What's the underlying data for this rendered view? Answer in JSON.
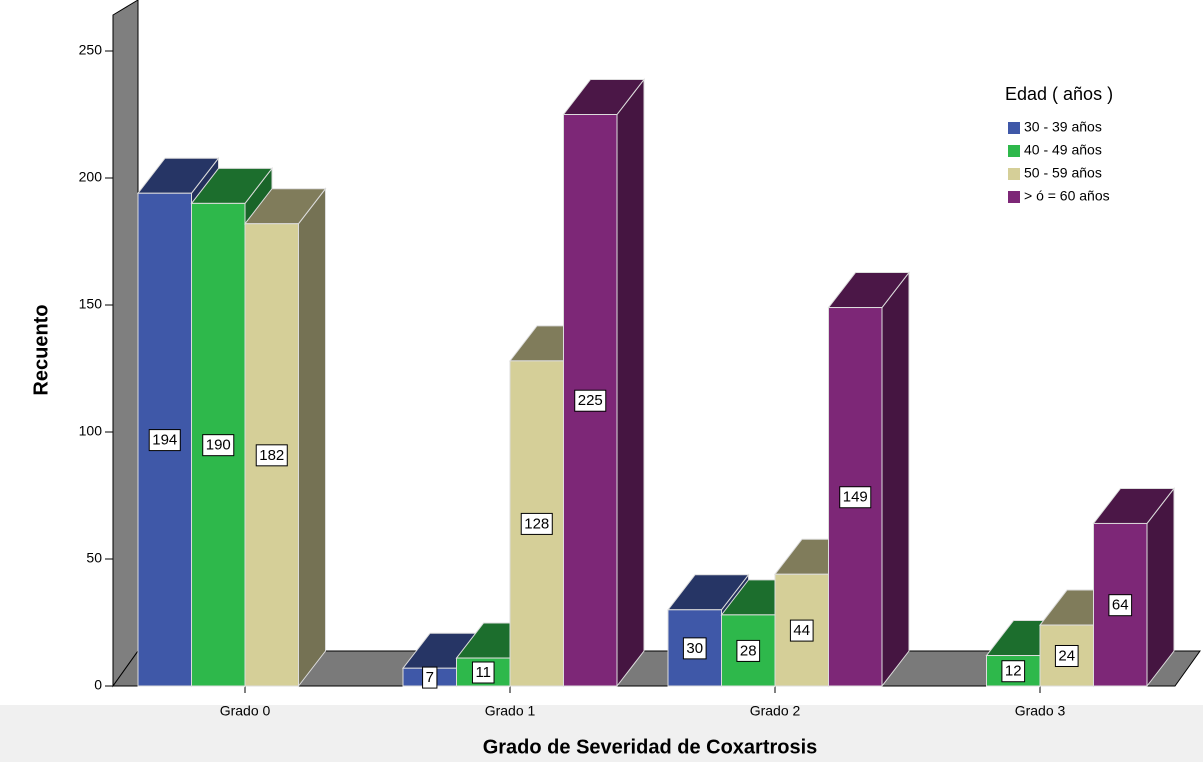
{
  "chart_data": {
    "type": "bar3d",
    "x_label": "Grado de Severidad de Coxartrosis",
    "y_label": "Recuento",
    "legend_title": "Edad ( años )",
    "categories": [
      "Grado 0",
      "Grado 1",
      "Grado 2",
      "Grado 3"
    ],
    "series": [
      {
        "name": "30 - 39 años",
        "color": "#3f58a8",
        "values": [
          194,
          7,
          30,
          null
        ]
      },
      {
        "name": "40 - 49 años",
        "color": "#2eb84b",
        "values": [
          190,
          11,
          28,
          12
        ]
      },
      {
        "name": "50 - 59 años",
        "color": "#d5cf98",
        "values": [
          182,
          128,
          44,
          24
        ]
      },
      {
        "name": "> ó = 60 años",
        "color": "#7d2777",
        "values": [
          null,
          225,
          149,
          64
        ]
      }
    ],
    "ylim": [
      0,
      250
    ],
    "yticks": [
      0,
      50,
      100,
      150,
      200,
      250
    ]
  }
}
